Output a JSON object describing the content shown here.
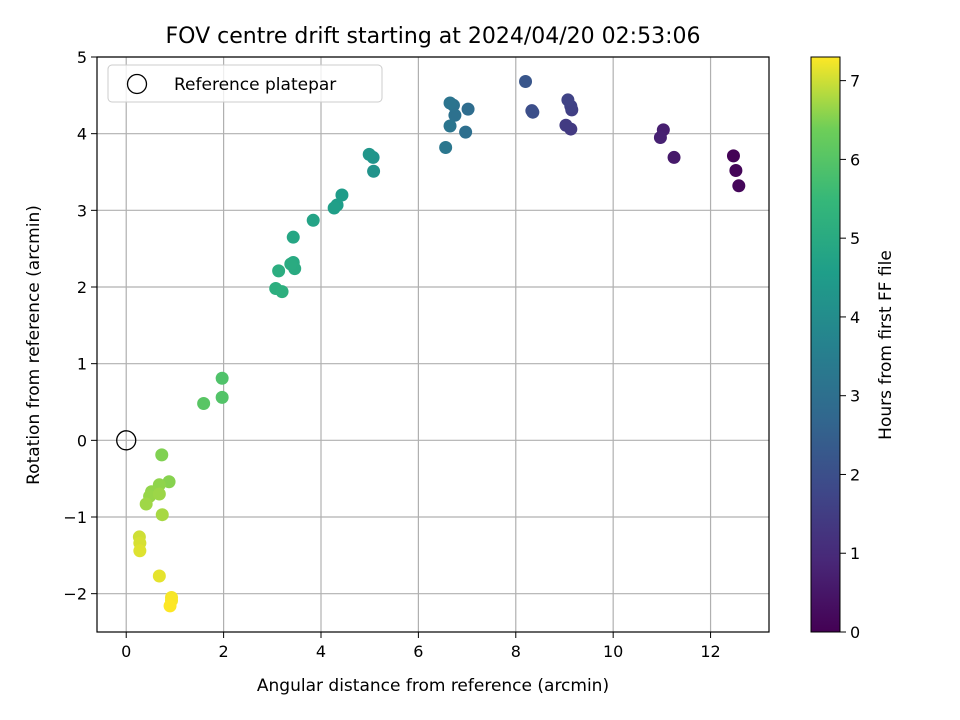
{
  "chart_data": {
    "type": "scatter",
    "title": "FOV centre drift starting at 2024/04/20 02:53:06",
    "xlabel": "Angular distance from reference (arcmin)",
    "ylabel": "Rotation from reference (arcmin)",
    "xlim": [
      -0.6,
      13.2
    ],
    "ylim": [
      -2.5,
      5.0
    ],
    "xticks": [
      0,
      2,
      4,
      6,
      8,
      10,
      12
    ],
    "yticks": [
      -2,
      -1,
      0,
      1,
      2,
      3,
      4,
      5
    ],
    "grid": true,
    "legend": {
      "position": "top-left",
      "entries": [
        "Reference platepar"
      ]
    },
    "reference_point": {
      "x": 0,
      "y": 0,
      "label": "Reference platepar"
    },
    "colorbar": {
      "label": "Hours from first FF file",
      "range": [
        0,
        7.3
      ],
      "ticks": [
        0,
        1,
        2,
        3,
        4,
        5,
        6,
        7
      ],
      "colormap": "viridis"
    },
    "points": [
      {
        "x": 12.47,
        "y": 3.71,
        "h": 0.05
      },
      {
        "x": 12.52,
        "y": 3.52,
        "h": 0.1
      },
      {
        "x": 12.58,
        "y": 3.32,
        "h": 0.15
      },
      {
        "x": 11.25,
        "y": 3.69,
        "h": 0.55
      },
      {
        "x": 11.03,
        "y": 4.05,
        "h": 0.7
      },
      {
        "x": 10.97,
        "y": 3.95,
        "h": 0.75
      },
      {
        "x": 9.13,
        "y": 4.06,
        "h": 1.4
      },
      {
        "x": 9.03,
        "y": 4.11,
        "h": 1.45
      },
      {
        "x": 9.15,
        "y": 4.31,
        "h": 1.55
      },
      {
        "x": 9.13,
        "y": 4.36,
        "h": 1.6
      },
      {
        "x": 9.07,
        "y": 4.44,
        "h": 1.65
      },
      {
        "x": 8.33,
        "y": 4.3,
        "h": 1.95
      },
      {
        "x": 8.35,
        "y": 4.28,
        "h": 2.0
      },
      {
        "x": 8.2,
        "y": 4.68,
        "h": 2.2
      },
      {
        "x": 7.02,
        "y": 4.32,
        "h": 2.9
      },
      {
        "x": 6.97,
        "y": 4.02,
        "h": 3.0
      },
      {
        "x": 6.75,
        "y": 4.24,
        "h": 3.05
      },
      {
        "x": 6.72,
        "y": 4.37,
        "h": 3.1
      },
      {
        "x": 6.65,
        "y": 4.4,
        "h": 3.15
      },
      {
        "x": 6.65,
        "y": 4.1,
        "h": 3.2
      },
      {
        "x": 6.56,
        "y": 3.82,
        "h": 3.25
      },
      {
        "x": 5.08,
        "y": 3.51,
        "h": 4.2
      },
      {
        "x": 5.07,
        "y": 3.69,
        "h": 4.25
      },
      {
        "x": 4.99,
        "y": 3.73,
        "h": 4.3
      },
      {
        "x": 4.43,
        "y": 3.2,
        "h": 4.5
      },
      {
        "x": 4.33,
        "y": 3.07,
        "h": 4.55
      },
      {
        "x": 4.27,
        "y": 3.03,
        "h": 4.6
      },
      {
        "x": 3.84,
        "y": 2.87,
        "h": 4.75
      },
      {
        "x": 3.43,
        "y": 2.65,
        "h": 4.85
      },
      {
        "x": 3.43,
        "y": 2.32,
        "h": 4.95
      },
      {
        "x": 3.46,
        "y": 2.24,
        "h": 5.0
      },
      {
        "x": 3.38,
        "y": 2.3,
        "h": 5.02
      },
      {
        "x": 3.13,
        "y": 2.21,
        "h": 5.1
      },
      {
        "x": 3.07,
        "y": 1.98,
        "h": 5.15
      },
      {
        "x": 3.2,
        "y": 1.94,
        "h": 5.2
      },
      {
        "x": 1.97,
        "y": 0.81,
        "h": 5.9
      },
      {
        "x": 1.97,
        "y": 0.56,
        "h": 5.95
      },
      {
        "x": 1.59,
        "y": 0.48,
        "h": 6.05
      },
      {
        "x": 0.73,
        "y": -0.19,
        "h": 6.5
      },
      {
        "x": 0.88,
        "y": -0.54,
        "h": 6.55
      },
      {
        "x": 0.68,
        "y": -0.58,
        "h": 6.6
      },
      {
        "x": 0.52,
        "y": -0.67,
        "h": 6.62
      },
      {
        "x": 0.48,
        "y": -0.73,
        "h": 6.65
      },
      {
        "x": 0.68,
        "y": -0.7,
        "h": 6.68
      },
      {
        "x": 0.41,
        "y": -0.83,
        "h": 6.7
      },
      {
        "x": 0.74,
        "y": -0.97,
        "h": 6.75
      },
      {
        "x": 0.27,
        "y": -1.26,
        "h": 7.0
      },
      {
        "x": 0.28,
        "y": -1.34,
        "h": 7.05
      },
      {
        "x": 0.28,
        "y": -1.44,
        "h": 7.1
      },
      {
        "x": 0.68,
        "y": -1.77,
        "h": 7.15
      },
      {
        "x": 0.93,
        "y": -2.05,
        "h": 7.25
      },
      {
        "x": 0.93,
        "y": -2.09,
        "h": 7.27
      },
      {
        "x": 0.9,
        "y": -2.16,
        "h": 7.3
      }
    ]
  }
}
